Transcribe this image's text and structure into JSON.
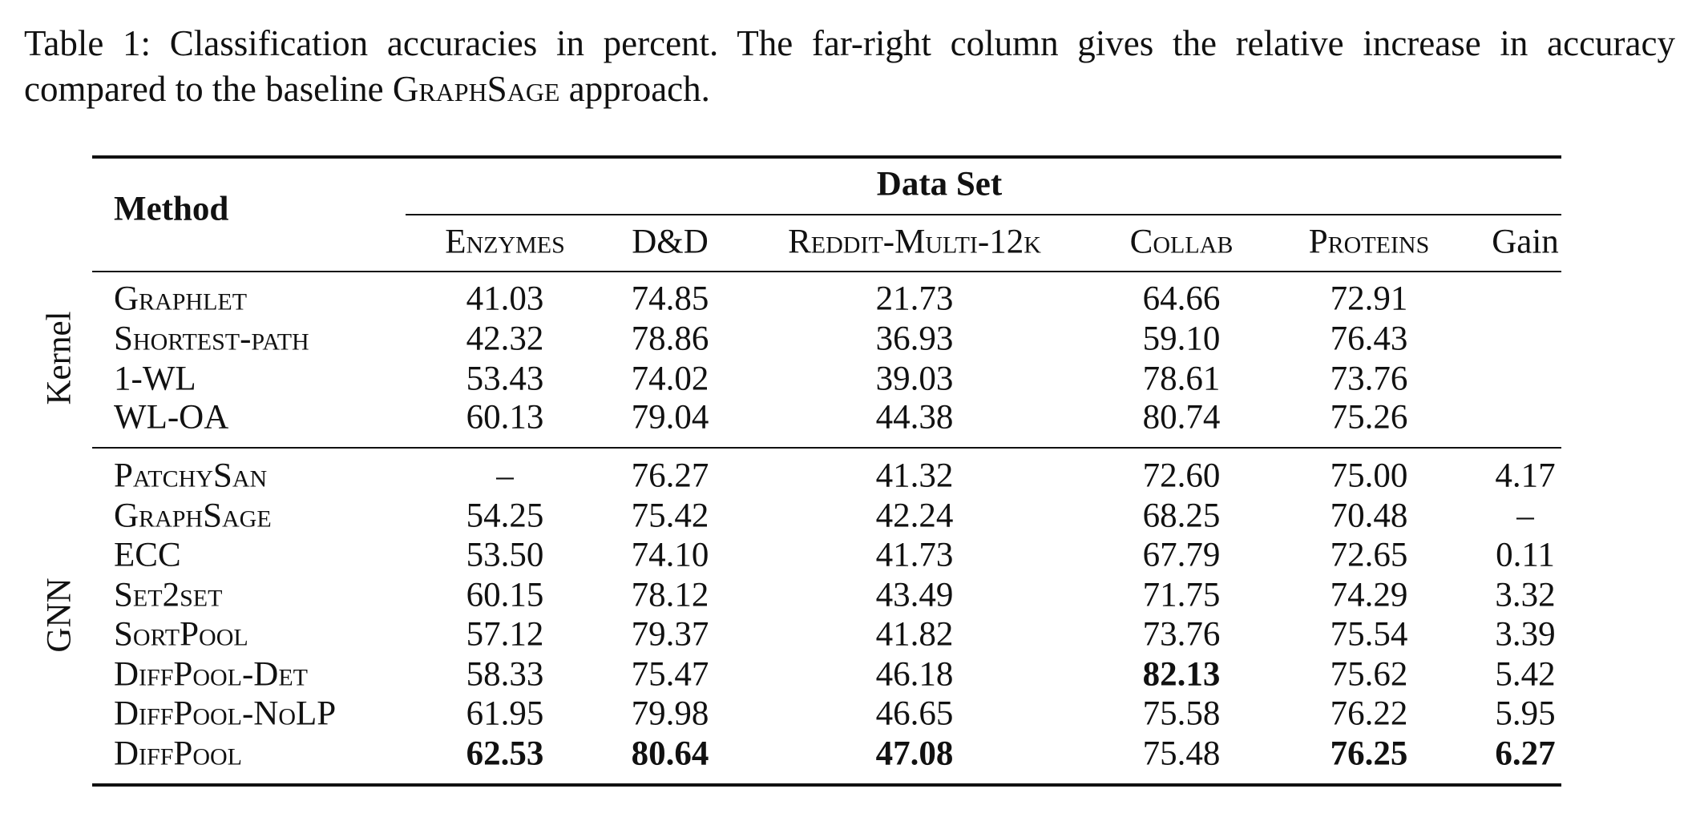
{
  "caption": [
    "Table 1: Classification accuracies in percent. The far-right column gives the relative increase in accuracy compared to the baseline ",
    "GraphSage",
    " approach."
  ],
  "table": {
    "method_header": "Method",
    "dataset_header": "Data Set",
    "columns": [
      "Enzymes",
      "D&D",
      "Reddit-Multi-12k",
      "Collab",
      "Proteins",
      "Gain"
    ],
    "groups": [
      {
        "label": "Kernel",
        "rows": [
          {
            "method": "Graphlet",
            "values": [
              "41.03",
              "74.85",
              "21.73",
              "64.66",
              "72.91"
            ]
          },
          {
            "method": "Shortest-path",
            "values": [
              "42.32",
              "78.86",
              "36.93",
              "59.10",
              "76.43"
            ]
          },
          {
            "method": "1-WL",
            "values": [
              "53.43",
              "74.02",
              "39.03",
              "78.61",
              "73.76"
            ]
          },
          {
            "method": "WL-OA",
            "values": [
              "60.13",
              "79.04",
              "44.38",
              "80.74",
              "75.26"
            ]
          }
        ]
      },
      {
        "label": "GNN",
        "rows": [
          {
            "method": "PatchySan",
            "values": [
              "–",
              "76.27",
              "41.32",
              "72.60",
              "75.00",
              "4.17"
            ]
          },
          {
            "method": "GraphSage",
            "values": [
              "54.25",
              "75.42",
              "42.24",
              "68.25",
              "70.48",
              "–"
            ]
          },
          {
            "method": "ECC",
            "values": [
              "53.50",
              "74.10",
              "41.73",
              "67.79",
              "72.65",
              "0.11"
            ]
          },
          {
            "method": "Set2set",
            "values": [
              "60.15",
              "78.12",
              "43.49",
              "71.75",
              "74.29",
              "3.32"
            ]
          },
          {
            "method": "SortPool",
            "values": [
              "57.12",
              "79.37",
              "41.82",
              "73.76",
              "75.54",
              "3.39"
            ]
          },
          {
            "method": "DiffPool-Det",
            "values": [
              "58.33",
              "75.47",
              "46.18",
              "82.13",
              "75.62",
              "5.42"
            ],
            "bold": [
              3
            ]
          },
          {
            "method": "DiffPool-NoLP",
            "values": [
              "61.95",
              "79.98",
              "46.65",
              "75.58",
              "76.22",
              "5.95"
            ]
          },
          {
            "method": "DiffPool",
            "values": [
              "62.53",
              "80.64",
              "47.08",
              "75.48",
              "76.25",
              "6.27"
            ],
            "bold": [
              0,
              1,
              2,
              4,
              5
            ]
          }
        ]
      }
    ]
  }
}
